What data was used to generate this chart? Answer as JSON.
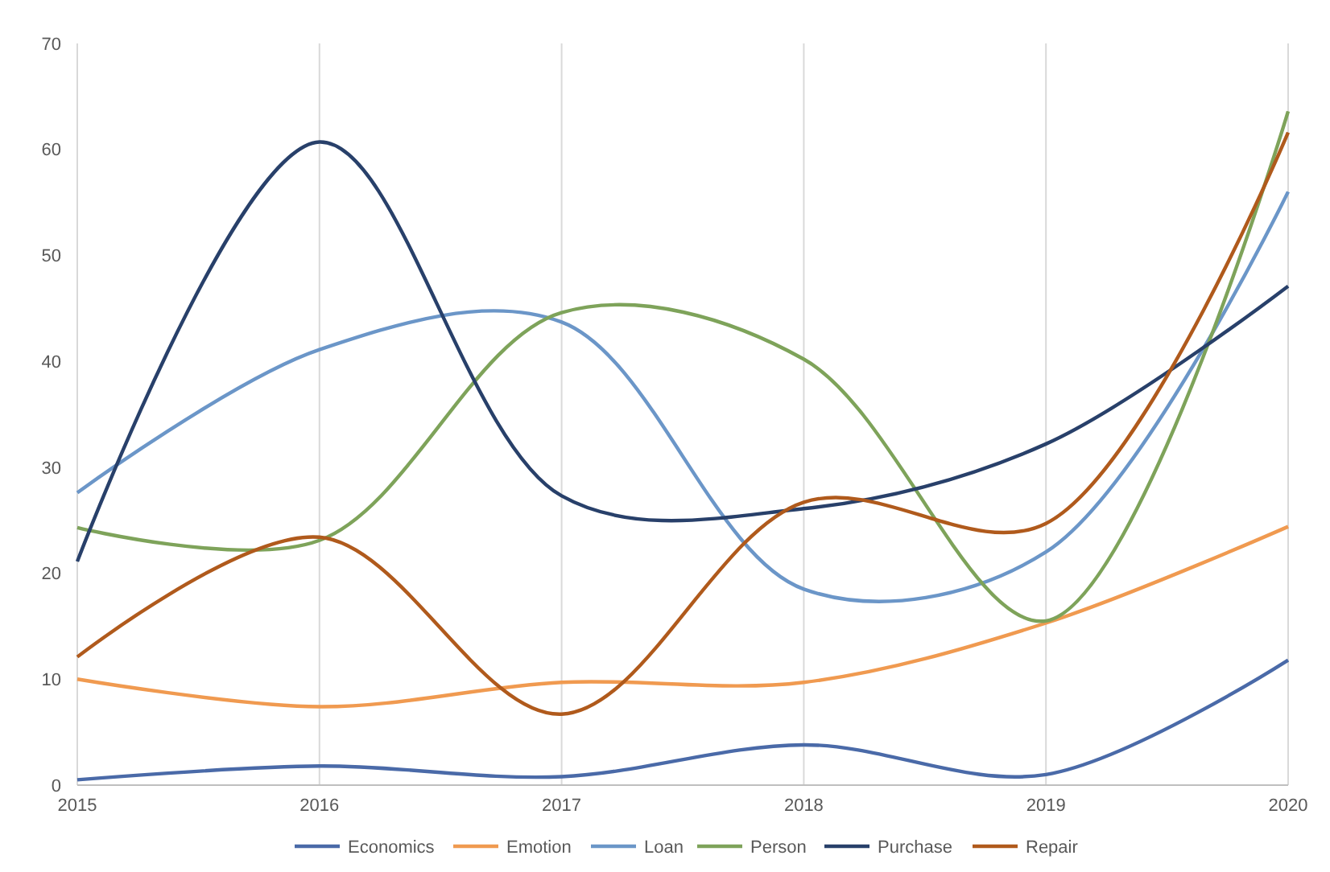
{
  "chart_data": {
    "type": "line",
    "x": [
      2015,
      2016,
      2017,
      2018,
      2019,
      2020
    ],
    "xlim": [
      2015,
      2020
    ],
    "xticks": [
      2015,
      2016,
      2017,
      2018,
      2019,
      2020
    ],
    "ylim": [
      0,
      70
    ],
    "yticks": [
      0,
      10,
      20,
      30,
      40,
      50,
      60,
      70
    ],
    "grid": "x",
    "legend": "bottom",
    "marker": "none",
    "line_style": "solid",
    "series": [
      {
        "name": "Economics",
        "color": "#4a6aa8",
        "values": [
          0.5,
          1.8,
          0.8,
          3.8,
          1.0,
          11.8
        ]
      },
      {
        "name": "Emotion",
        "color": "#f09a50",
        "values": [
          10.0,
          7.4,
          9.7,
          9.7,
          15.3,
          24.4
        ]
      },
      {
        "name": "Loan",
        "color": "#6b96c8",
        "values": [
          27.6,
          41.1,
          43.7,
          18.5,
          22.0,
          56.0
        ]
      },
      {
        "name": "Person",
        "color": "#7ea35a",
        "values": [
          24.3,
          23.1,
          44.6,
          40.2,
          15.5,
          63.6
        ]
      },
      {
        "name": "Purchase",
        "color": "#28406a",
        "values": [
          21.1,
          60.7,
          27.3,
          26.1,
          32.2,
          47.1
        ]
      },
      {
        "name": "Repair",
        "color": "#b05a1c",
        "values": [
          12.1,
          23.4,
          6.7,
          26.7,
          24.7,
          61.6
        ]
      }
    ]
  }
}
